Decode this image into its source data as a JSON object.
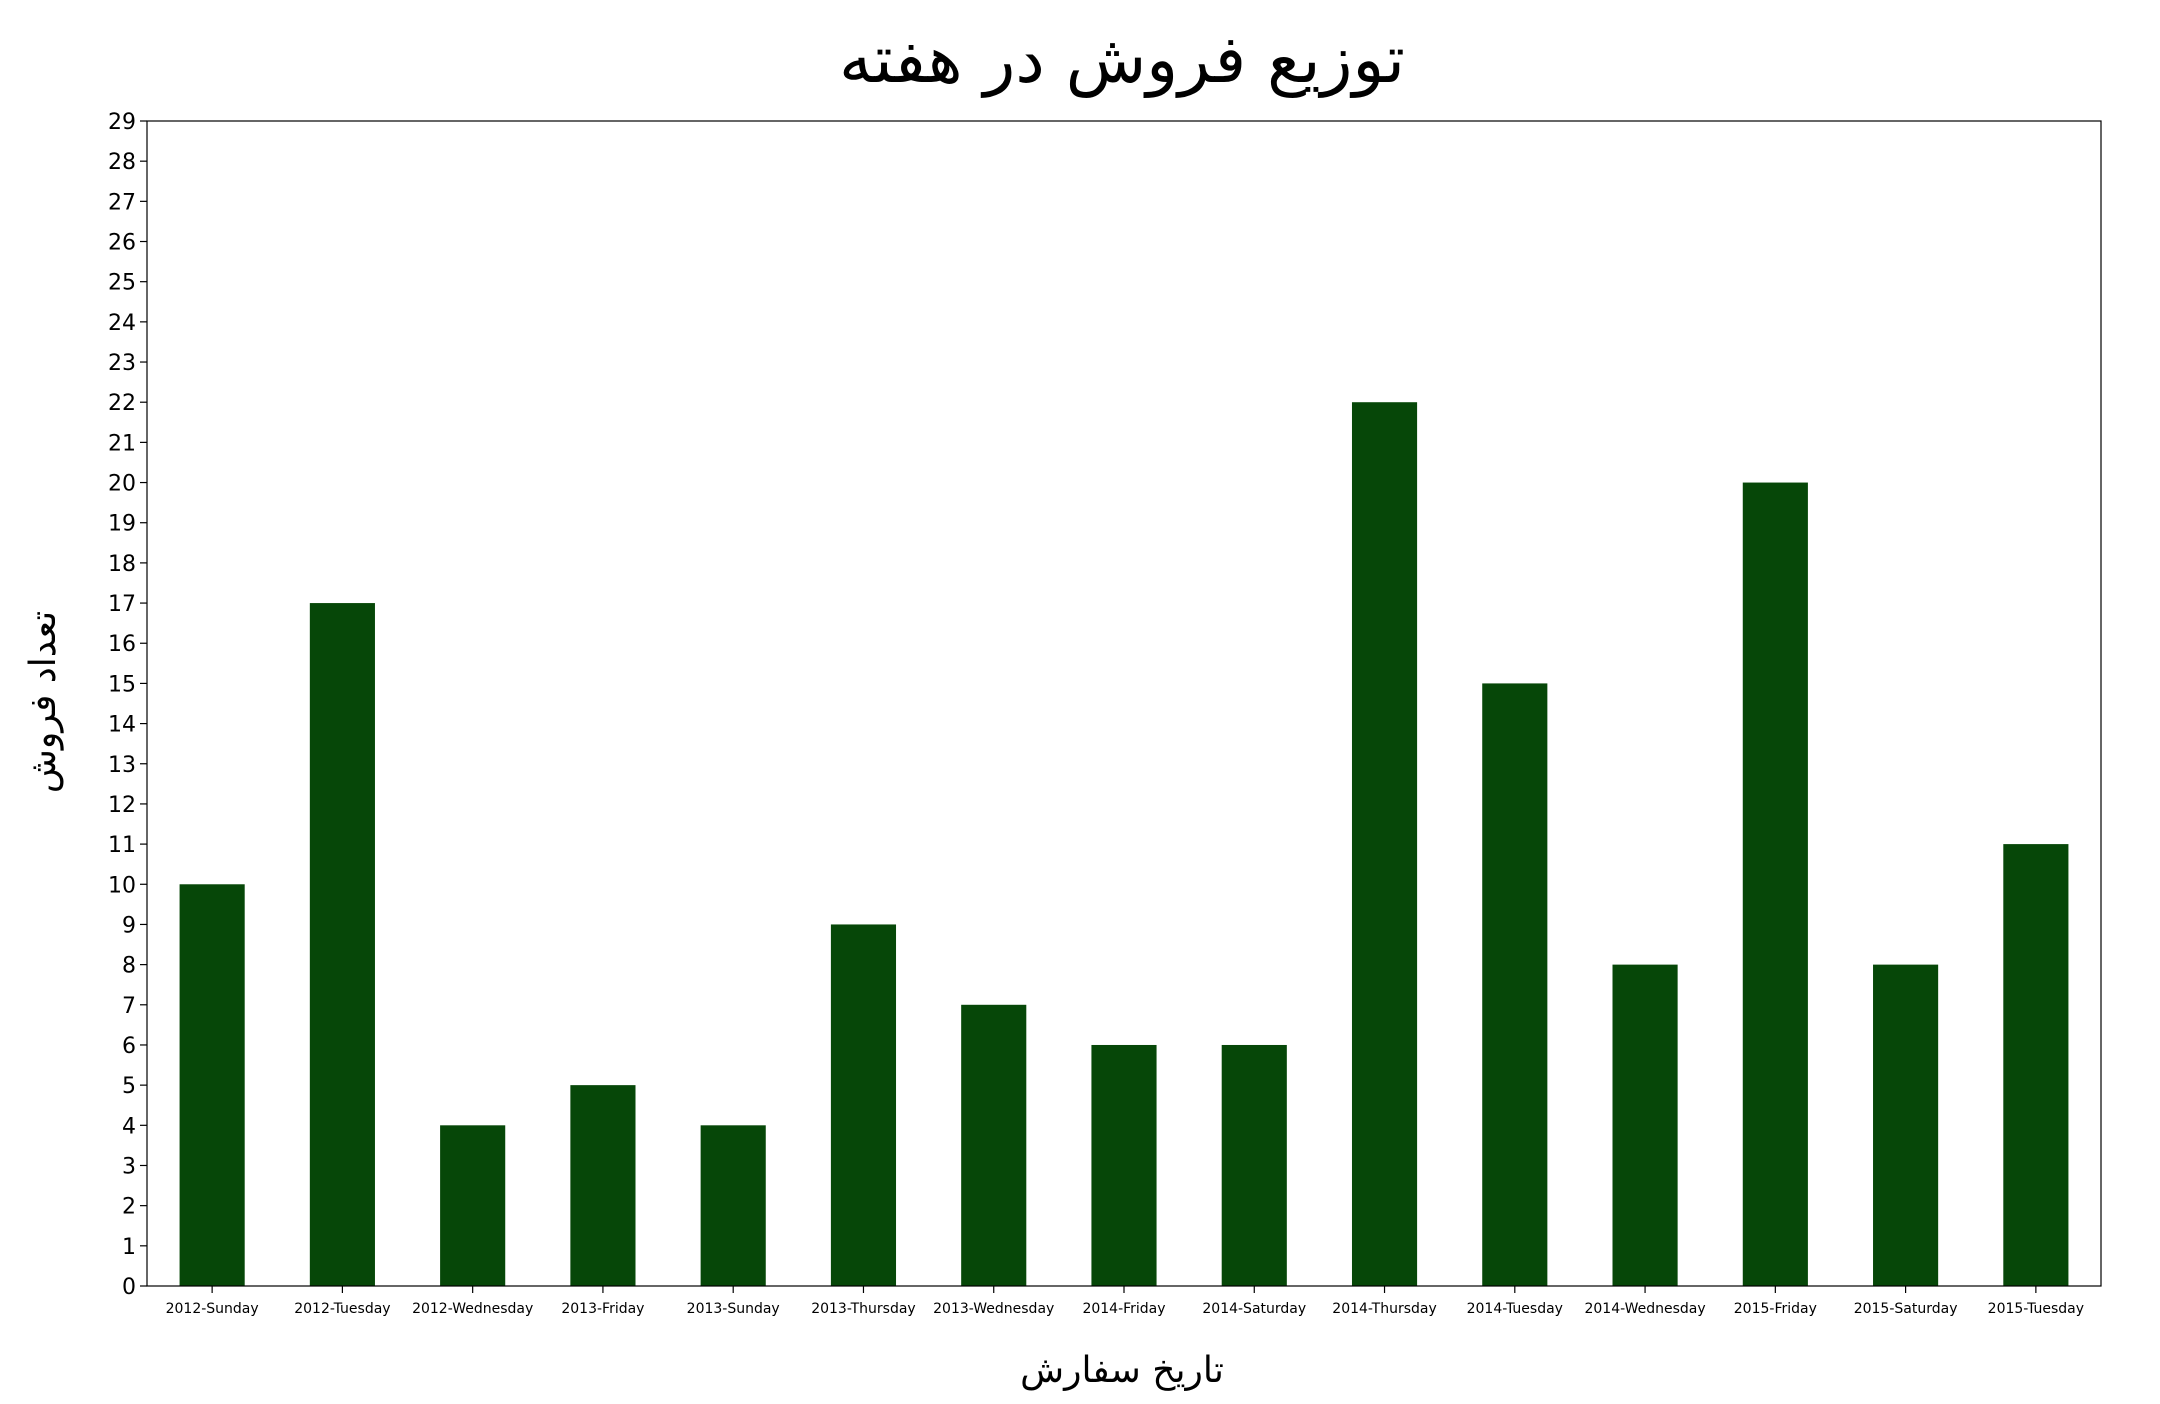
{
  "chart_data": {
    "type": "bar",
    "title": "توزیع فروش در هفته",
    "xlabel": "تاریخ سفارش",
    "ylabel": "تعداد فروش",
    "categories": [
      "2012-Sunday",
      "2012-Tuesday",
      "2012-Wednesday",
      "2013-Friday",
      "2013-Sunday",
      "2013-Thursday",
      "2013-Wednesday",
      "2014-Friday",
      "2014-Saturday",
      "2014-Thursday",
      "2014-Tuesday",
      "2014-Wednesday",
      "2015-Friday",
      "2015-Saturday",
      "2015-Tuesday"
    ],
    "values": [
      10,
      17,
      4,
      5,
      4,
      9,
      7,
      6,
      6,
      22,
      15,
      8,
      20,
      8,
      11
    ],
    "ylim": [
      0,
      29
    ],
    "yticks": [
      "0",
      "1",
      "2",
      "3",
      "4",
      "5",
      "6",
      "7",
      "8",
      "9",
      "10",
      "11",
      "12",
      "13",
      "14",
      "15",
      "16",
      "17",
      "18",
      "19",
      "20",
      "21",
      "22",
      "23",
      "24",
      "25",
      "26",
      "27",
      "28",
      "29"
    ],
    "bar_color": "#064708",
    "grid": false,
    "legend": "none"
  }
}
